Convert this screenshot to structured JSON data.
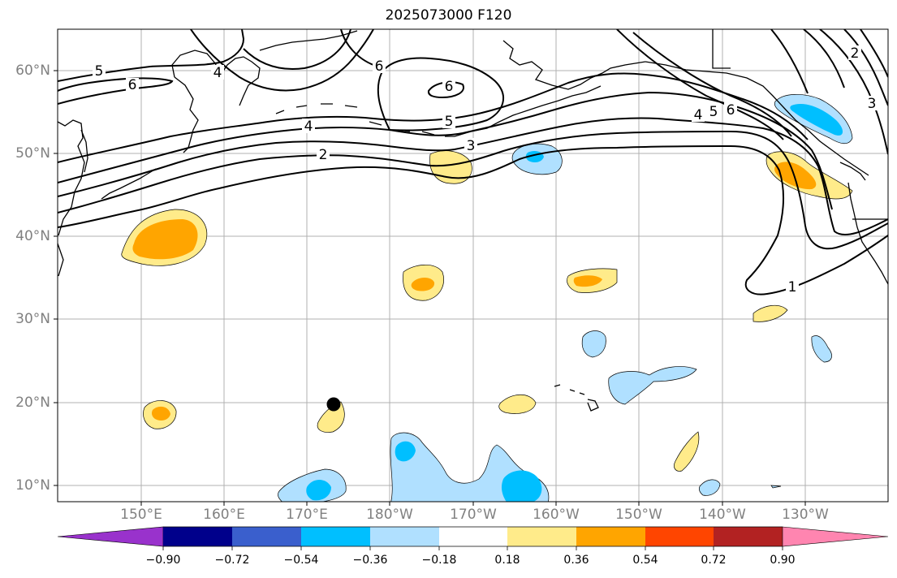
{
  "title": "2025073000 F120",
  "map": {
    "lat_labels": [
      "60°N",
      "50°N",
      "40°N",
      "30°N",
      "20°N",
      "10°N"
    ],
    "lon_labels": [
      "150°E",
      "160°E",
      "170°E",
      "180°W",
      "170°W",
      "160°W",
      "150°W",
      "140°W",
      "130°W"
    ],
    "contour_labels": [
      "5",
      "6",
      "4",
      "6",
      "5",
      "3",
      "2",
      "4",
      "5",
      "6",
      "2",
      "3",
      "1"
    ],
    "colors": {
      "land_outline": "#000000",
      "contour": "#000000",
      "grid": "#b0b0b0",
      "light_yellow": "#ffeb8a",
      "orange": "#ffa500",
      "light_blue": "#b0e0ff",
      "deep_sky_blue": "#00bfff"
    },
    "marker": "storm-position-dot"
  },
  "colorbar": {
    "colors": [
      "#9932cc",
      "#00008b",
      "#3a5fcd",
      "#00bfff",
      "#b0e0ff",
      "#ffffff",
      "#ffeb8a",
      "#ffa500",
      "#ff4500",
      "#b22222",
      "#ff85b0"
    ],
    "tick_labels": [
      "−0.90",
      "−0.72",
      "−0.54",
      "−0.36",
      "−0.18",
      "0.18",
      "0.36",
      "0.54",
      "0.72",
      "0.90"
    ]
  }
}
